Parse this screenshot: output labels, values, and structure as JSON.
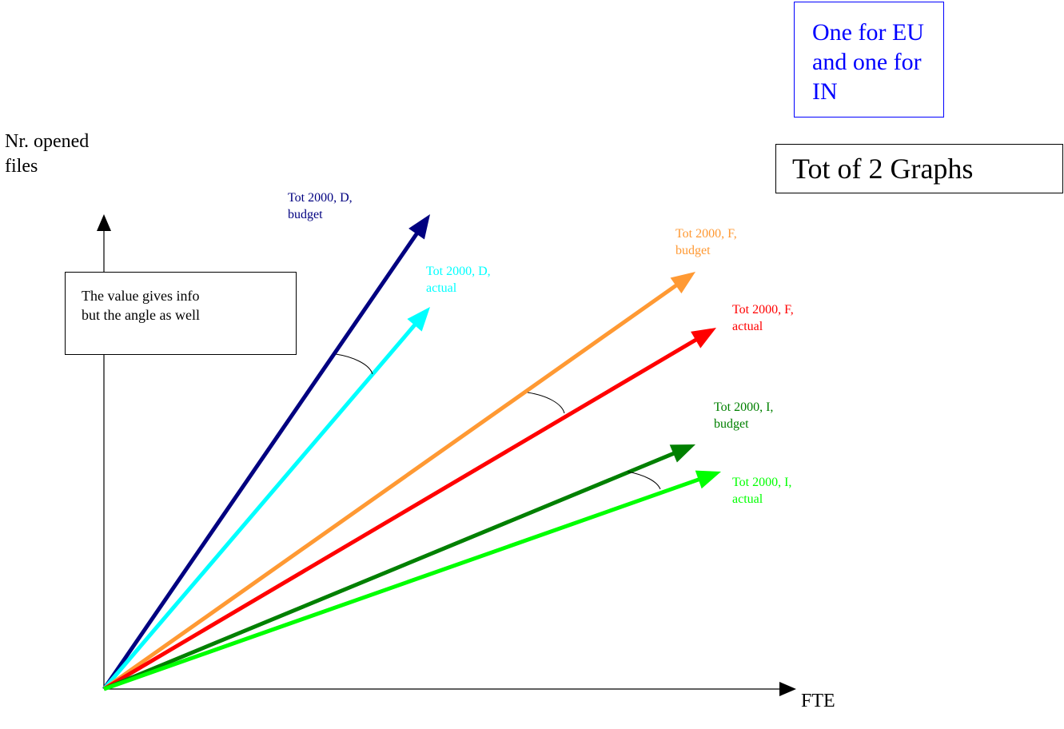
{
  "notes": {
    "count_box": [
      "One for EU",
      "and one for IN"
    ],
    "graphs_box": "Tot of 2 Graphs",
    "angle_box": [
      "The value gives info",
      "but the angle as well"
    ]
  },
  "axes": {
    "y_label": [
      "Nr. opened",
      "files"
    ],
    "x_label": "FTE"
  },
  "vectors": [
    {
      "id": "d-budget",
      "label": [
        "Tot 2000, D,",
        "budget"
      ],
      "color": "#000080"
    },
    {
      "id": "d-actual",
      "label": [
        "Tot 2000, D,",
        "actual"
      ],
      "color": "#00ffff"
    },
    {
      "id": "f-budget",
      "label": [
        "Tot 2000, F,",
        "budget"
      ],
      "color": "#ff9933"
    },
    {
      "id": "f-actual",
      "label": [
        "Tot 2000, F,",
        "actual"
      ],
      "color": "#ff0000"
    },
    {
      "id": "i-budget",
      "label": [
        "Tot 2000, I,",
        "budget"
      ],
      "color": "#008000"
    },
    {
      "id": "i-actual",
      "label": [
        "Tot 2000, I,",
        "actual"
      ],
      "color": "#00ff00"
    }
  ]
}
